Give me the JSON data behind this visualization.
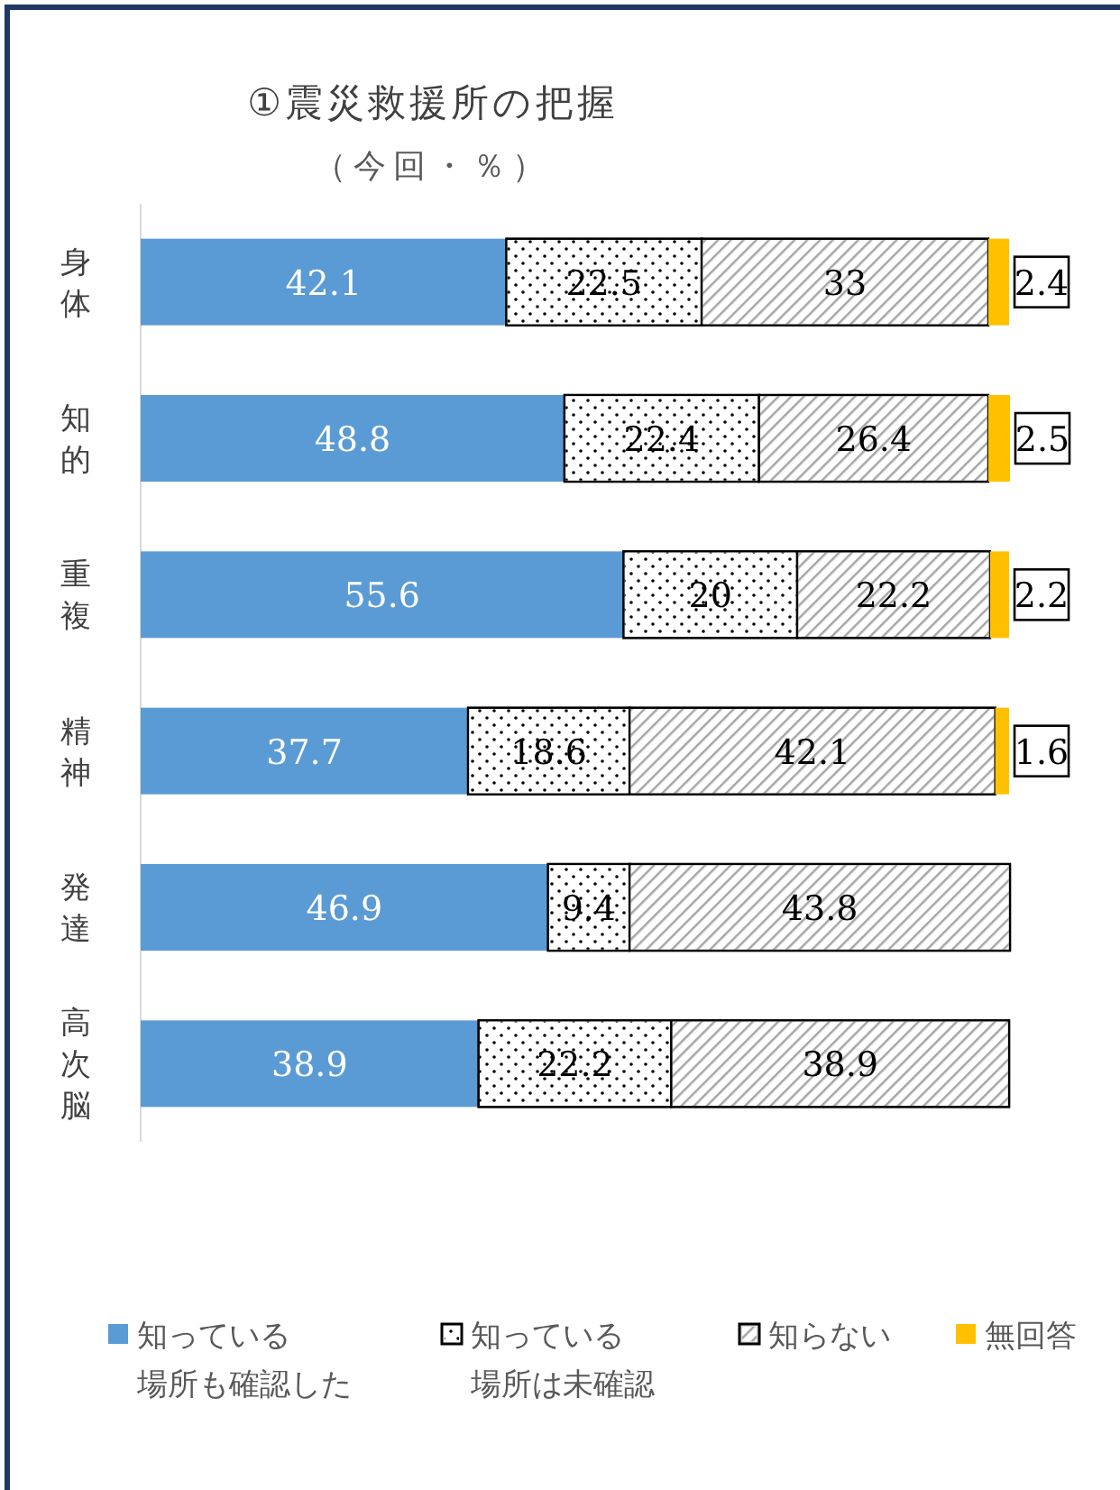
{
  "chart_data": {
    "type": "bar",
    "orientation": "horizontal",
    "stacked": true,
    "data_labels": true,
    "legend": "bottom",
    "title": "①震災救援所の把握",
    "subtitle": "（今回・％）",
    "categories": [
      "身体",
      "知的",
      "重複",
      "精神",
      "発達",
      "高次脳"
    ],
    "series": [
      {
        "name": "知っている場所も確認した",
        "color": "#5b9bd5",
        "values": [
          42.1,
          48.8,
          55.6,
          37.7,
          46.9,
          38.9
        ]
      },
      {
        "name": "知っている場所は未確認",
        "color": "#ffffff",
        "values": [
          22.5,
          22.4,
          20,
          18.6,
          9.4,
          22.2
        ]
      },
      {
        "name": "知らない",
        "color": "#d9d9d9",
        "values": [
          33,
          26.4,
          22.2,
          42.1,
          43.8,
          38.9
        ]
      },
      {
        "name": "無回答",
        "color": "#ffc000",
        "values": [
          2.4,
          2.5,
          2.2,
          1.6,
          null,
          null
        ]
      }
    ]
  }
}
